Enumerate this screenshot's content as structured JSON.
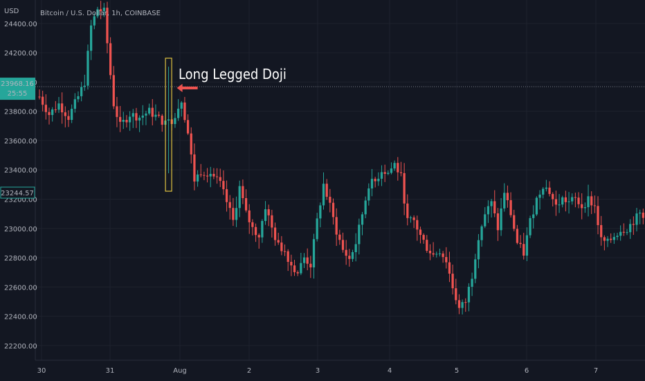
{
  "header": {
    "title": "Bitcoin / U.S. Dollar, 1h, COINBASE"
  },
  "axis": {
    "currency": "USD"
  },
  "price_badge": {
    "price": "23968.16",
    "countdown": "25:55"
  },
  "low_badge": {
    "price": "23244.57"
  },
  "annotation": {
    "text": "Long Legged Doji"
  },
  "colors": {
    "background": "#131722",
    "up": "#26a69a",
    "down": "#ef5350",
    "highlight": "#e0c341",
    "arrow": "#ef5350"
  },
  "chart_data": {
    "type": "candlestick",
    "title": "Bitcoin / U.S. Dollar, 1h, COINBASE",
    "ylabel": "USD",
    "ylim": [
      22100,
      24560
    ],
    "y_ticks": [
      "24400.00",
      "24200.00",
      "24000.00",
      "23800.00",
      "23600.00",
      "23400.00",
      "23200.00",
      "23000.00",
      "22800.00",
      "22600.00",
      "22400.00",
      "22200.00"
    ],
    "x_ticks": [
      "30",
      "31",
      "Aug",
      "2",
      "3",
      "4",
      "5",
      "6",
      "7"
    ],
    "current_price": 23968.16,
    "marked_price": 23244.57,
    "anchor_points": [
      [
        0,
        23900
      ],
      [
        3,
        23780
      ],
      [
        6,
        23850
      ],
      [
        9,
        23760
      ],
      [
        12,
        23900
      ],
      [
        14,
        24000
      ],
      [
        16,
        24380
      ],
      [
        18,
        24500
      ],
      [
        20,
        24480
      ],
      [
        22,
        24050
      ],
      [
        23,
        23850
      ],
      [
        25,
        23700
      ],
      [
        28,
        23780
      ],
      [
        31,
        23760
      ],
      [
        34,
        23800
      ],
      [
        37,
        23750
      ],
      [
        40,
        23700
      ],
      [
        42,
        23780
      ],
      [
        44,
        23880
      ],
      [
        46,
        23650
      ],
      [
        48,
        23330
      ],
      [
        50,
        23390
      ],
      [
        53,
        23380
      ],
      [
        56,
        23300
      ],
      [
        58,
        23180
      ],
      [
        60,
        23050
      ],
      [
        62,
        23280
      ],
      [
        64,
        23100
      ],
      [
        66,
        23000
      ],
      [
        68,
        22950
      ],
      [
        70,
        23150
      ],
      [
        72,
        23000
      ],
      [
        74,
        22880
      ],
      [
        76,
        22850
      ],
      [
        78,
        22750
      ],
      [
        80,
        22700
      ],
      [
        82,
        22800
      ],
      [
        84,
        22750
      ],
      [
        86,
        23050
      ],
      [
        88,
        23300
      ],
      [
        90,
        23150
      ],
      [
        92,
        22980
      ],
      [
        94,
        22850
      ],
      [
        96,
        22790
      ],
      [
        98,
        22900
      ],
      [
        100,
        23100
      ],
      [
        102,
        23300
      ],
      [
        104,
        23320
      ],
      [
        106,
        23400
      ],
      [
        108,
        23380
      ],
      [
        110,
        23440
      ],
      [
        112,
        23350
      ],
      [
        114,
        23050
      ],
      [
        116,
        23050
      ],
      [
        118,
        22950
      ],
      [
        120,
        22870
      ],
      [
        122,
        22820
      ],
      [
        124,
        22850
      ],
      [
        126,
        22780
      ],
      [
        128,
        22600
      ],
      [
        130,
        22450
      ],
      [
        132,
        22500
      ],
      [
        134,
        22680
      ],
      [
        136,
        22950
      ],
      [
        138,
        23100
      ],
      [
        140,
        23170
      ],
      [
        142,
        23000
      ],
      [
        144,
        23250
      ],
      [
        146,
        23100
      ],
      [
        148,
        22900
      ],
      [
        150,
        22830
      ],
      [
        152,
        23050
      ],
      [
        154,
        23200
      ],
      [
        156,
        23300
      ],
      [
        158,
        23250
      ],
      [
        160,
        23150
      ],
      [
        162,
        23200
      ],
      [
        164,
        23180
      ],
      [
        166,
        23200
      ],
      [
        168,
        23150
      ],
      [
        170,
        23200
      ],
      [
        172,
        23150
      ],
      [
        174,
        22920
      ],
      [
        176,
        22900
      ],
      [
        178,
        22950
      ],
      [
        180,
        22990
      ],
      [
        182,
        23000
      ],
      [
        184,
        23050
      ],
      [
        186,
        23100
      ],
      [
        187,
        23070
      ]
    ]
  }
}
